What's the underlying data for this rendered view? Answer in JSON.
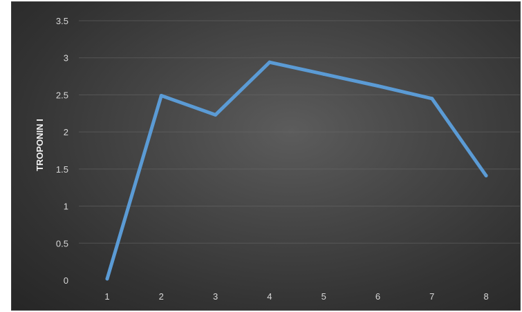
{
  "chart_data": {
    "type": "line",
    "title": "",
    "xlabel": "",
    "ylabel": "TROPONIN I",
    "x": [
      1,
      2,
      3,
      4,
      5,
      6,
      7,
      8
    ],
    "series": [
      {
        "values": [
          0.02,
          2.49,
          2.23,
          2.94,
          2.78,
          2.62,
          2.45,
          1.41
        ]
      }
    ],
    "ylim": [
      0,
      3.5
    ],
    "yticks": [
      0,
      0.5,
      1,
      1.5,
      2,
      2.5,
      3,
      3.5
    ],
    "ytick_labels": [
      "0",
      "0.5",
      "1",
      "1.5",
      "2",
      "2.5",
      "3",
      "3.5"
    ],
    "xtick_labels": [
      "1",
      "2",
      "3",
      "4",
      "5",
      "6",
      "7",
      "8"
    ],
    "grid": true,
    "legend": "none",
    "colors": {
      "line": "#5b9bd5",
      "background": "#3a3a3a",
      "grid": "#6b6b6b",
      "text": "#d9d9d9"
    }
  }
}
